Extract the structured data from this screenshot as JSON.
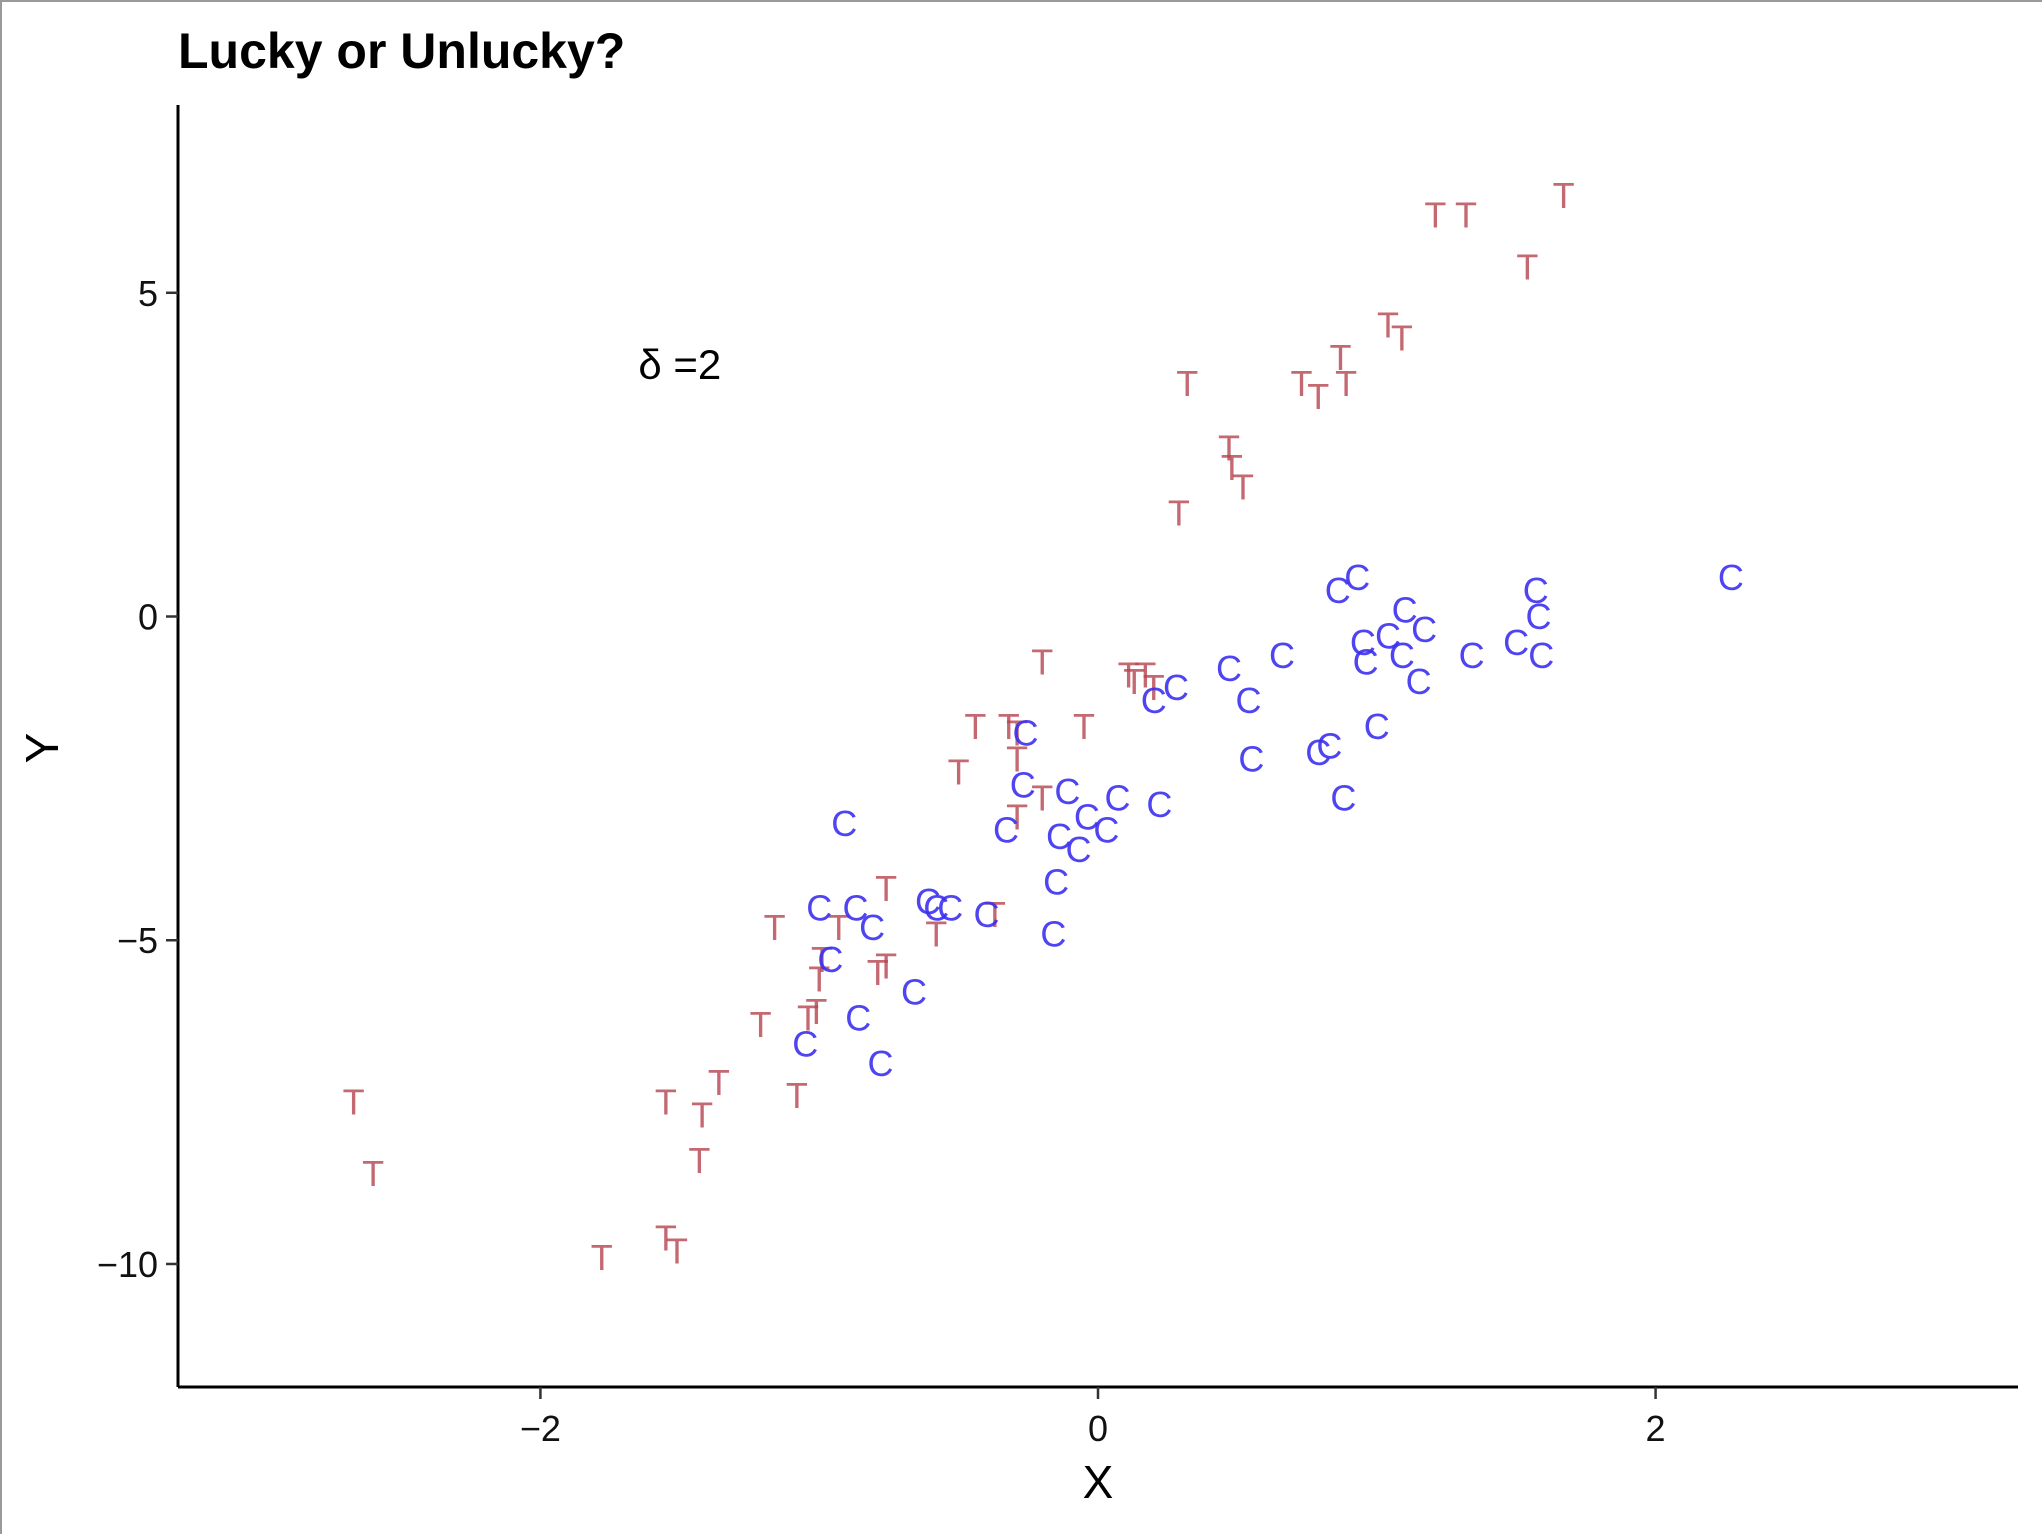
{
  "chart_data": {
    "type": "scatter",
    "title": "Lucky or Unlucky?",
    "xlabel": "X",
    "ylabel": "Y",
    "xlim": [
      -3.3,
      3.3
    ],
    "ylim": [
      -11.9,
      7.9
    ],
    "xticks": [
      -2,
      0,
      2
    ],
    "xtick_labels": [
      "−2",
      "0",
      "2"
    ],
    "yticks": [
      -10,
      -5,
      0,
      5
    ],
    "ytick_labels": [
      "−10",
      "−5",
      "0",
      "5"
    ],
    "grid": false,
    "annotation": {
      "text": "δ =2",
      "x": -1.5,
      "y": 3.9
    },
    "series": [
      {
        "marker": "T",
        "color": "#b5444f",
        "points": [
          [
            1.67,
            6.5
          ],
          [
            1.32,
            6.2
          ],
          [
            1.21,
            6.2
          ],
          [
            1.54,
            5.4
          ],
          [
            1.04,
            4.5
          ],
          [
            1.09,
            4.3
          ],
          [
            0.87,
            4.0
          ],
          [
            0.89,
            3.6
          ],
          [
            0.73,
            3.6
          ],
          [
            0.79,
            3.4
          ],
          [
            0.32,
            3.6
          ],
          [
            0.47,
            2.6
          ],
          [
            0.48,
            2.3
          ],
          [
            0.52,
            2.0
          ],
          [
            0.29,
            1.6
          ],
          [
            -0.2,
            -0.7
          ],
          [
            0.11,
            -0.9
          ],
          [
            0.17,
            -0.9
          ],
          [
            0.13,
            -1.0
          ],
          [
            0.2,
            -1.1
          ],
          [
            -0.44,
            -1.7
          ],
          [
            -0.32,
            -1.7
          ],
          [
            -0.29,
            -1.8
          ],
          [
            -0.05,
            -1.7
          ],
          [
            -0.29,
            -2.2
          ],
          [
            -0.5,
            -2.4
          ],
          [
            -0.2,
            -2.8
          ],
          [
            -0.29,
            -3.1
          ],
          [
            -0.37,
            -4.6
          ],
          [
            -0.76,
            -4.2
          ],
          [
            -1.16,
            -4.8
          ],
          [
            -0.93,
            -4.8
          ],
          [
            -0.58,
            -4.9
          ],
          [
            -0.99,
            -5.3
          ],
          [
            -0.76,
            -5.4
          ],
          [
            -0.79,
            -5.5
          ],
          [
            -1.0,
            -5.6
          ],
          [
            -1.01,
            -6.1
          ],
          [
            -1.04,
            -6.2
          ],
          [
            -1.21,
            -6.3
          ],
          [
            -1.08,
            -7.4
          ],
          [
            -1.55,
            -7.5
          ],
          [
            -1.36,
            -7.2
          ],
          [
            -1.42,
            -7.7
          ],
          [
            -2.67,
            -7.5
          ],
          [
            -2.6,
            -8.6
          ],
          [
            -1.43,
            -8.4
          ],
          [
            -1.55,
            -9.6
          ],
          [
            -1.51,
            -9.8
          ],
          [
            -1.78,
            -9.9
          ]
        ]
      },
      {
        "marker": "C",
        "color": "#3b30f0",
        "points": [
          [
            2.27,
            0.6
          ],
          [
            0.93,
            0.6
          ],
          [
            0.86,
            0.4
          ],
          [
            1.57,
            0.4
          ],
          [
            1.58,
            0.0
          ],
          [
            1.1,
            0.1
          ],
          [
            1.17,
            -0.2
          ],
          [
            1.04,
            -0.3
          ],
          [
            0.95,
            -0.4
          ],
          [
            1.5,
            -0.4
          ],
          [
            1.34,
            -0.6
          ],
          [
            1.59,
            -0.6
          ],
          [
            0.66,
            -0.6
          ],
          [
            1.09,
            -0.6
          ],
          [
            0.96,
            -0.7
          ],
          [
            0.47,
            -0.8
          ],
          [
            1.15,
            -1.0
          ],
          [
            0.28,
            -1.1
          ],
          [
            0.54,
            -1.3
          ],
          [
            0.2,
            -1.3
          ],
          [
            -0.26,
            -1.8
          ],
          [
            1.0,
            -1.7
          ],
          [
            0.55,
            -2.2
          ],
          [
            0.83,
            -2.0
          ],
          [
            0.79,
            -2.1
          ],
          [
            -0.27,
            -2.6
          ],
          [
            0.88,
            -2.8
          ],
          [
            -0.11,
            -2.7
          ],
          [
            0.07,
            -2.8
          ],
          [
            0.22,
            -2.9
          ],
          [
            -0.04,
            -3.1
          ],
          [
            -0.33,
            -3.3
          ],
          [
            -0.14,
            -3.4
          ],
          [
            0.03,
            -3.3
          ],
          [
            -0.07,
            -3.6
          ],
          [
            -0.91,
            -3.2
          ],
          [
            -0.15,
            -4.1
          ],
          [
            -0.61,
            -4.4
          ],
          [
            -1.0,
            -4.5
          ],
          [
            -0.87,
            -4.5
          ],
          [
            -0.58,
            -4.5
          ],
          [
            -0.53,
            -4.5
          ],
          [
            -0.4,
            -4.6
          ],
          [
            -0.16,
            -4.9
          ],
          [
            -0.81,
            -4.8
          ],
          [
            -0.96,
            -5.3
          ],
          [
            -0.66,
            -5.8
          ],
          [
            -0.86,
            -6.2
          ],
          [
            -1.05,
            -6.6
          ],
          [
            -0.78,
            -6.9
          ]
        ]
      }
    ]
  }
}
